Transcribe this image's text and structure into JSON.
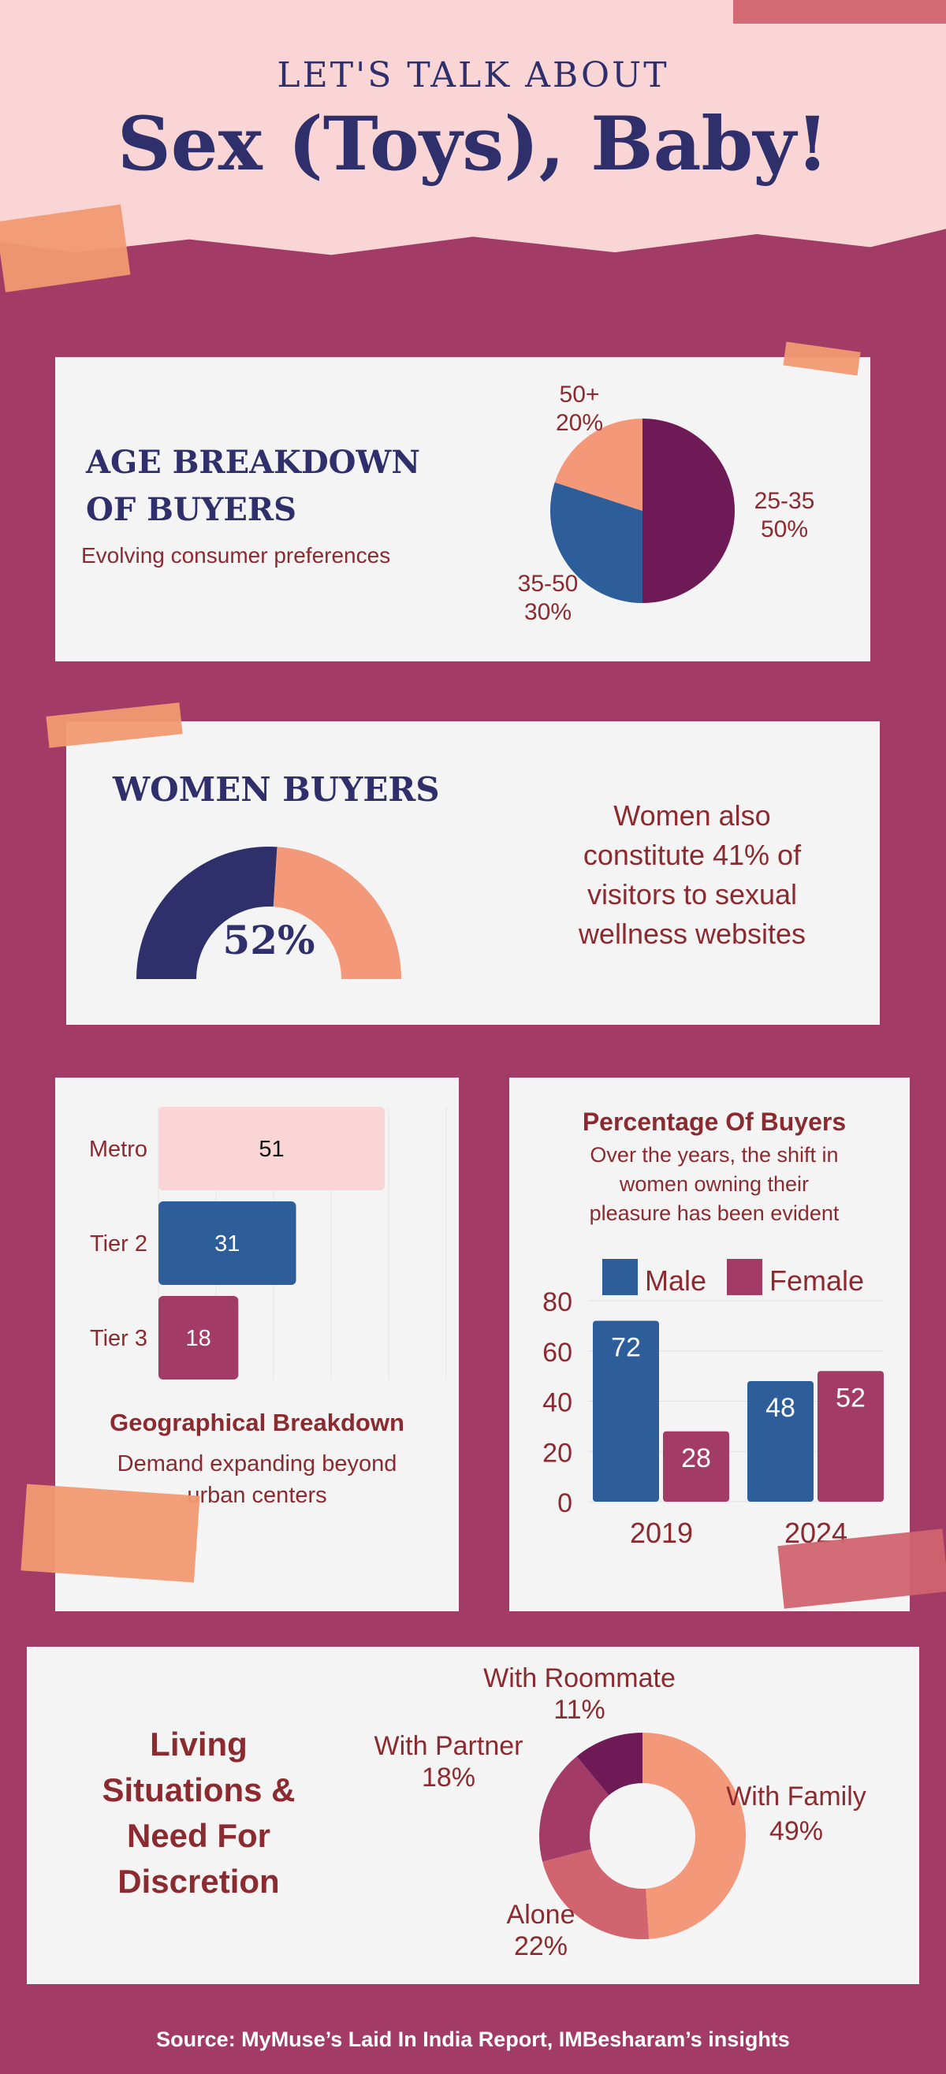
{
  "header": {
    "kicker": "LET'S TALK ABOUT",
    "title": "Sex (Toys), Baby!"
  },
  "age": {
    "title_line1": "AGE BREAKDOWN",
    "title_line2": "OF BUYERS",
    "subtitle": "Evolving consumer preferences",
    "slices": [
      {
        "label": "25-35",
        "value": 50,
        "pct": "50%",
        "color": "#6e1a57"
      },
      {
        "label": "35-50",
        "value": 30,
        "pct": "30%",
        "color": "#2e5e99"
      },
      {
        "label": "50+",
        "value": 20,
        "pct": "20%",
        "color": "#f4987a"
      }
    ]
  },
  "women": {
    "title": "WOMEN BUYERS",
    "value": 52,
    "value_label": "52%",
    "colors": [
      "#2e2f6b",
      "#f4987a"
    ],
    "text_lines": [
      "Women also",
      "constitute 41% of",
      "visitors to sexual",
      "wellness websites"
    ]
  },
  "chart_data": [
    {
      "type": "bar",
      "orientation": "horizontal",
      "title": "Geographical Breakdown",
      "subtitle_lines": [
        "Demand expanding beyond",
        "urban centers"
      ],
      "categories": [
        "Metro",
        "Tier 2",
        "Tier 3"
      ],
      "values": [
        51,
        31,
        18
      ],
      "colors": [
        "#f9d6d5",
        "#2e5e99",
        "#a23b66"
      ]
    },
    {
      "type": "bar",
      "title": "Percentage Of Buyers",
      "subtitle_lines": [
        "Over the years, the shift in",
        "women owning their",
        "pleasure has been evident"
      ],
      "categories": [
        "2019",
        "2024"
      ],
      "series": [
        {
          "name": "Male",
          "values": [
            72,
            48
          ],
          "color": "#2e5e99"
        },
        {
          "name": "Female",
          "values": [
            28,
            52
          ],
          "color": "#a23b66"
        }
      ],
      "ylim": [
        0,
        80
      ],
      "yticks": [
        "0",
        "20",
        "40",
        "60",
        "80"
      ],
      "legend": "top"
    },
    {
      "type": "pie",
      "donut": true,
      "title_lines": [
        "Living",
        "Situations &",
        "Need For",
        "Discretion"
      ],
      "slices": [
        {
          "label": "With Family",
          "value": 49,
          "pct": "49%",
          "color": "#f4987a"
        },
        {
          "label": "Alone",
          "value": 22,
          "pct": "22%",
          "color": "#d0646f"
        },
        {
          "label": "With Partner",
          "value": 18,
          "pct": "18%",
          "color": "#a23b66"
        },
        {
          "label": "With Roommate",
          "value": 11,
          "pct": "11%",
          "color": "#6e1a57"
        }
      ]
    }
  ],
  "footer": {
    "source": "Source: MyMuse’s Laid In India Report, IMBesharam’s insights"
  }
}
